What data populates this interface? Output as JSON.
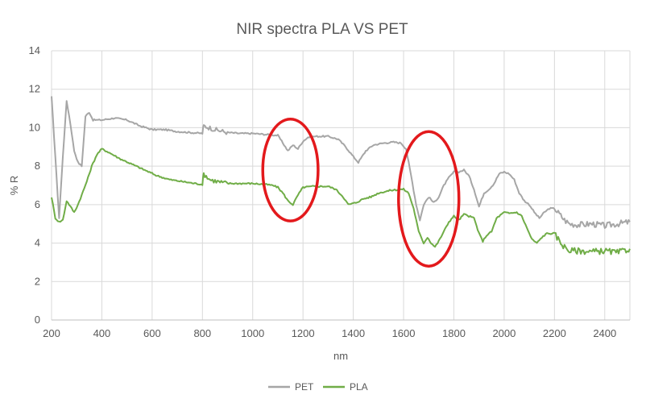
{
  "chart_data": {
    "type": "line",
    "title": "NIR spectra PLA VS PET",
    "xlabel": "nm",
    "ylabel": "% R",
    "xlim": [
      200,
      2500
    ],
    "ylim": [
      0,
      14
    ],
    "xticks": [
      200,
      400,
      600,
      800,
      1000,
      1200,
      1400,
      1600,
      1800,
      2000,
      2200,
      2400
    ],
    "yticks": [
      0,
      2,
      4,
      6,
      8,
      10,
      12,
      14
    ],
    "grid": "on",
    "legend_position": "bottom",
    "series": [
      {
        "name": "PET",
        "color": "#a6a6a6",
        "points": [
          [
            200,
            11.6
          ],
          [
            215,
            8.5
          ],
          [
            230,
            5.3
          ],
          [
            245,
            8.5
          ],
          [
            260,
            11.4
          ],
          [
            275,
            10.2
          ],
          [
            290,
            8.8
          ],
          [
            305,
            8.2
          ],
          [
            320,
            8.0
          ],
          [
            335,
            10.6
          ],
          [
            350,
            10.8
          ],
          [
            365,
            10.4
          ],
          [
            380,
            10.4
          ],
          [
            400,
            10.4
          ],
          [
            450,
            10.5
          ],
          [
            500,
            10.4
          ],
          [
            550,
            10.1
          ],
          [
            600,
            9.9
          ],
          [
            650,
            9.9
          ],
          [
            700,
            9.8
          ],
          [
            750,
            9.75
          ],
          [
            800,
            9.7
          ],
          [
            805,
            10.1
          ],
          [
            850,
            9.9
          ],
          [
            900,
            9.75
          ],
          [
            950,
            9.7
          ],
          [
            1000,
            9.7
          ],
          [
            1050,
            9.65
          ],
          [
            1100,
            9.6
          ],
          [
            1120,
            9.2
          ],
          [
            1140,
            8.8
          ],
          [
            1160,
            9.1
          ],
          [
            1180,
            8.9
          ],
          [
            1200,
            9.3
          ],
          [
            1220,
            9.5
          ],
          [
            1250,
            9.55
          ],
          [
            1300,
            9.55
          ],
          [
            1340,
            9.4
          ],
          [
            1370,
            9.0
          ],
          [
            1400,
            8.5
          ],
          [
            1420,
            8.2
          ],
          [
            1450,
            8.8
          ],
          [
            1480,
            9.1
          ],
          [
            1520,
            9.2
          ],
          [
            1560,
            9.25
          ],
          [
            1590,
            9.2
          ],
          [
            1610,
            8.9
          ],
          [
            1630,
            7.5
          ],
          [
            1650,
            6.0
          ],
          [
            1665,
            5.2
          ],
          [
            1680,
            6.0
          ],
          [
            1700,
            6.4
          ],
          [
            1720,
            6.1
          ],
          [
            1740,
            6.4
          ],
          [
            1760,
            7.0
          ],
          [
            1780,
            7.4
          ],
          [
            1800,
            7.7
          ],
          [
            1820,
            7.7
          ],
          [
            1840,
            7.8
          ],
          [
            1860,
            7.5
          ],
          [
            1880,
            6.8
          ],
          [
            1900,
            5.9
          ],
          [
            1920,
            6.6
          ],
          [
            1940,
            6.8
          ],
          [
            1960,
            7.1
          ],
          [
            1980,
            7.6
          ],
          [
            2000,
            7.7
          ],
          [
            2020,
            7.6
          ],
          [
            2040,
            7.3
          ],
          [
            2060,
            6.6
          ],
          [
            2080,
            6.2
          ],
          [
            2100,
            6.0
          ],
          [
            2120,
            5.6
          ],
          [
            2140,
            5.3
          ],
          [
            2160,
            5.6
          ],
          [
            2180,
            5.8
          ],
          [
            2200,
            5.8
          ],
          [
            2220,
            5.5
          ],
          [
            2240,
            5.2
          ],
          [
            2260,
            5.0
          ],
          [
            2300,
            4.95
          ],
          [
            2350,
            5.0
          ],
          [
            2400,
            4.9
          ],
          [
            2450,
            5.0
          ],
          [
            2500,
            5.1
          ]
        ]
      },
      {
        "name": "PLA",
        "color": "#70ad47",
        "points": [
          [
            200,
            6.4
          ],
          [
            215,
            5.3
          ],
          [
            230,
            5.1
          ],
          [
            245,
            5.2
          ],
          [
            260,
            6.2
          ],
          [
            275,
            5.9
          ],
          [
            290,
            5.6
          ],
          [
            305,
            6.0
          ],
          [
            320,
            6.5
          ],
          [
            340,
            7.2
          ],
          [
            360,
            8.0
          ],
          [
            380,
            8.6
          ],
          [
            400,
            8.9
          ],
          [
            430,
            8.7
          ],
          [
            470,
            8.4
          ],
          [
            520,
            8.1
          ],
          [
            570,
            7.8
          ],
          [
            620,
            7.5
          ],
          [
            670,
            7.3
          ],
          [
            720,
            7.2
          ],
          [
            770,
            7.1
          ],
          [
            800,
            7.05
          ],
          [
            805,
            7.6
          ],
          [
            830,
            7.3
          ],
          [
            860,
            7.2
          ],
          [
            900,
            7.1
          ],
          [
            950,
            7.1
          ],
          [
            1000,
            7.1
          ],
          [
            1050,
            7.05
          ],
          [
            1080,
            7.0
          ],
          [
            1100,
            6.9
          ],
          [
            1120,
            6.6
          ],
          [
            1140,
            6.2
          ],
          [
            1160,
            6.0
          ],
          [
            1180,
            6.5
          ],
          [
            1200,
            6.9
          ],
          [
            1240,
            6.95
          ],
          [
            1300,
            6.95
          ],
          [
            1330,
            6.8
          ],
          [
            1360,
            6.4
          ],
          [
            1380,
            6.0
          ],
          [
            1410,
            6.1
          ],
          [
            1440,
            6.3
          ],
          [
            1470,
            6.4
          ],
          [
            1500,
            6.6
          ],
          [
            1550,
            6.75
          ],
          [
            1600,
            6.8
          ],
          [
            1620,
            6.6
          ],
          [
            1640,
            5.8
          ],
          [
            1660,
            4.6
          ],
          [
            1680,
            4.0
          ],
          [
            1695,
            4.3
          ],
          [
            1710,
            4.0
          ],
          [
            1725,
            3.8
          ],
          [
            1740,
            4.1
          ],
          [
            1760,
            4.6
          ],
          [
            1780,
            5.1
          ],
          [
            1800,
            5.4
          ],
          [
            1820,
            5.2
          ],
          [
            1840,
            5.5
          ],
          [
            1860,
            5.4
          ],
          [
            1880,
            5.3
          ],
          [
            1900,
            4.5
          ],
          [
            1915,
            4.1
          ],
          [
            1930,
            4.4
          ],
          [
            1950,
            4.6
          ],
          [
            1970,
            5.3
          ],
          [
            2000,
            5.6
          ],
          [
            2020,
            5.55
          ],
          [
            2050,
            5.6
          ],
          [
            2070,
            5.4
          ],
          [
            2090,
            4.8
          ],
          [
            2110,
            4.2
          ],
          [
            2130,
            4.0
          ],
          [
            2150,
            4.3
          ],
          [
            2170,
            4.5
          ],
          [
            2200,
            4.5
          ],
          [
            2220,
            4.1
          ],
          [
            2240,
            3.8
          ],
          [
            2260,
            3.6
          ],
          [
            2300,
            3.6
          ],
          [
            2350,
            3.55
          ],
          [
            2400,
            3.6
          ],
          [
            2450,
            3.5
          ],
          [
            2500,
            3.7
          ]
        ]
      }
    ],
    "annotations": [
      {
        "shape": "ellipse",
        "color": "#e3191c",
        "center": [
          1150,
          7.8
        ],
        "radius_x": 110,
        "radius_y": 2.65
      },
      {
        "shape": "ellipse",
        "color": "#e3191c",
        "center": [
          1700,
          6.3
        ],
        "radius_x": 120,
        "radius_y": 3.5
      }
    ]
  }
}
